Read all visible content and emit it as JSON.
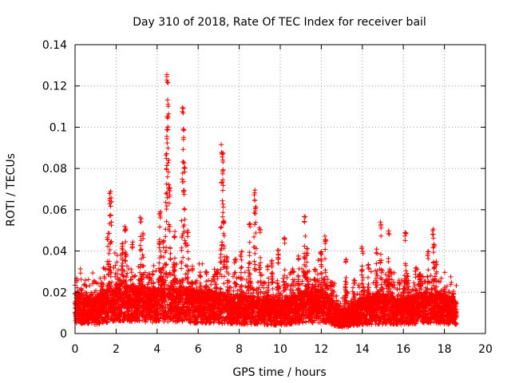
{
  "chart_data": {
    "type": "scatter",
    "title": "Day 310 of 2018, Rate Of TEC Index for receiver bail",
    "xlabel": "GPS time / hours",
    "ylabel": "ROTI / TECUs",
    "xlim": [
      0,
      20
    ],
    "ylim": [
      0,
      0.14
    ],
    "x_ticks": [
      "0",
      "2",
      "4",
      "6",
      "8",
      "10",
      "12",
      "14",
      "16",
      "18",
      "20"
    ],
    "y_ticks": [
      "0",
      "0.02",
      "0.04",
      "0.06",
      "0.08",
      "0.1",
      "0.12",
      "0.14"
    ],
    "x_tick_values": [
      0,
      2,
      4,
      6,
      8,
      10,
      12,
      14,
      16,
      18,
      20
    ],
    "y_tick_values": [
      0,
      0.02,
      0.04,
      0.06,
      0.08,
      0.1,
      0.12,
      0.14
    ],
    "grid": true,
    "marker": "+",
    "marker_color": "#ff0000",
    "time_range": [
      0,
      18.6
    ],
    "time_step": 0.01,
    "baseline": [
      [
        0,
        0.014
      ],
      [
        1,
        0.012
      ],
      [
        2,
        0.017
      ],
      [
        3,
        0.016
      ],
      [
        4,
        0.015
      ],
      [
        5,
        0.016
      ],
      [
        6,
        0.014
      ],
      [
        7,
        0.014
      ],
      [
        8,
        0.013
      ],
      [
        9,
        0.012
      ],
      [
        10,
        0.011
      ],
      [
        11,
        0.014
      ],
      [
        12,
        0.015
      ],
      [
        13,
        0.008
      ],
      [
        14,
        0.012
      ],
      [
        15,
        0.013
      ],
      [
        16,
        0.012
      ],
      [
        17,
        0.014
      ],
      [
        18,
        0.013
      ],
      [
        18.6,
        0.012
      ]
    ],
    "spikes": [
      {
        "x": 0.1,
        "y": 0.027
      },
      {
        "x": 0.3,
        "y": 0.022
      },
      {
        "x": 0.8,
        "y": 0.02
      },
      {
        "x": 1.3,
        "y": 0.025
      },
      {
        "x": 1.6,
        "y": 0.049
      },
      {
        "x": 1.7,
        "y": 0.071
      },
      {
        "x": 1.75,
        "y": 0.066
      },
      {
        "x": 2.3,
        "y": 0.044
      },
      {
        "x": 2.45,
        "y": 0.052
      },
      {
        "x": 2.8,
        "y": 0.045
      },
      {
        "x": 3.2,
        "y": 0.057
      },
      {
        "x": 3.3,
        "y": 0.05
      },
      {
        "x": 3.6,
        "y": 0.029
      },
      {
        "x": 3.8,
        "y": 0.03
      },
      {
        "x": 4.1,
        "y": 0.045
      },
      {
        "x": 4.15,
        "y": 0.062
      },
      {
        "x": 4.3,
        "y": 0.045
      },
      {
        "x": 4.5,
        "y": 0.128
      },
      {
        "x": 4.55,
        "y": 0.113
      },
      {
        "x": 4.5,
        "y": 0.106
      },
      {
        "x": 4.45,
        "y": 0.088
      },
      {
        "x": 4.6,
        "y": 0.074
      },
      {
        "x": 4.85,
        "y": 0.05
      },
      {
        "x": 5.25,
        "y": 0.112
      },
      {
        "x": 5.3,
        "y": 0.101
      },
      {
        "x": 5.35,
        "y": 0.085
      },
      {
        "x": 5.3,
        "y": 0.07
      },
      {
        "x": 5.5,
        "y": 0.05
      },
      {
        "x": 5.7,
        "y": 0.033
      },
      {
        "x": 6.1,
        "y": 0.03
      },
      {
        "x": 6.4,
        "y": 0.032
      },
      {
        "x": 6.9,
        "y": 0.031
      },
      {
        "x": 7.15,
        "y": 0.092
      },
      {
        "x": 7.2,
        "y": 0.089
      },
      {
        "x": 7.2,
        "y": 0.08
      },
      {
        "x": 7.25,
        "y": 0.058
      },
      {
        "x": 7.4,
        "y": 0.038
      },
      {
        "x": 7.8,
        "y": 0.037
      },
      {
        "x": 8.1,
        "y": 0.04
      },
      {
        "x": 8.5,
        "y": 0.055
      },
      {
        "x": 8.75,
        "y": 0.07
      },
      {
        "x": 8.8,
        "y": 0.064
      },
      {
        "x": 9.0,
        "y": 0.052
      },
      {
        "x": 9.4,
        "y": 0.033
      },
      {
        "x": 9.6,
        "y": 0.036
      },
      {
        "x": 9.9,
        "y": 0.041
      },
      {
        "x": 10.2,
        "y": 0.047
      },
      {
        "x": 10.6,
        "y": 0.032
      },
      {
        "x": 10.9,
        "y": 0.038
      },
      {
        "x": 11.2,
        "y": 0.057
      },
      {
        "x": 11.3,
        "y": 0.042
      },
      {
        "x": 11.7,
        "y": 0.032
      },
      {
        "x": 12.0,
        "y": 0.04
      },
      {
        "x": 12.2,
        "y": 0.048
      },
      {
        "x": 12.5,
        "y": 0.025
      },
      {
        "x": 13.2,
        "y": 0.037
      },
      {
        "x": 13.6,
        "y": 0.026
      },
      {
        "x": 14.0,
        "y": 0.042
      },
      {
        "x": 14.3,
        "y": 0.034
      },
      {
        "x": 14.7,
        "y": 0.041
      },
      {
        "x": 14.9,
        "y": 0.055
      },
      {
        "x": 15.3,
        "y": 0.05
      },
      {
        "x": 15.4,
        "y": 0.03
      },
      {
        "x": 15.8,
        "y": 0.026
      },
      {
        "x": 16.1,
        "y": 0.05
      },
      {
        "x": 16.2,
        "y": 0.03
      },
      {
        "x": 16.6,
        "y": 0.032
      },
      {
        "x": 16.8,
        "y": 0.029
      },
      {
        "x": 17.2,
        "y": 0.04
      },
      {
        "x": 17.45,
        "y": 0.051
      },
      {
        "x": 17.5,
        "y": 0.044
      },
      {
        "x": 17.6,
        "y": 0.036
      },
      {
        "x": 18.0,
        "y": 0.022
      },
      {
        "x": 18.4,
        "y": 0.018
      }
    ]
  }
}
